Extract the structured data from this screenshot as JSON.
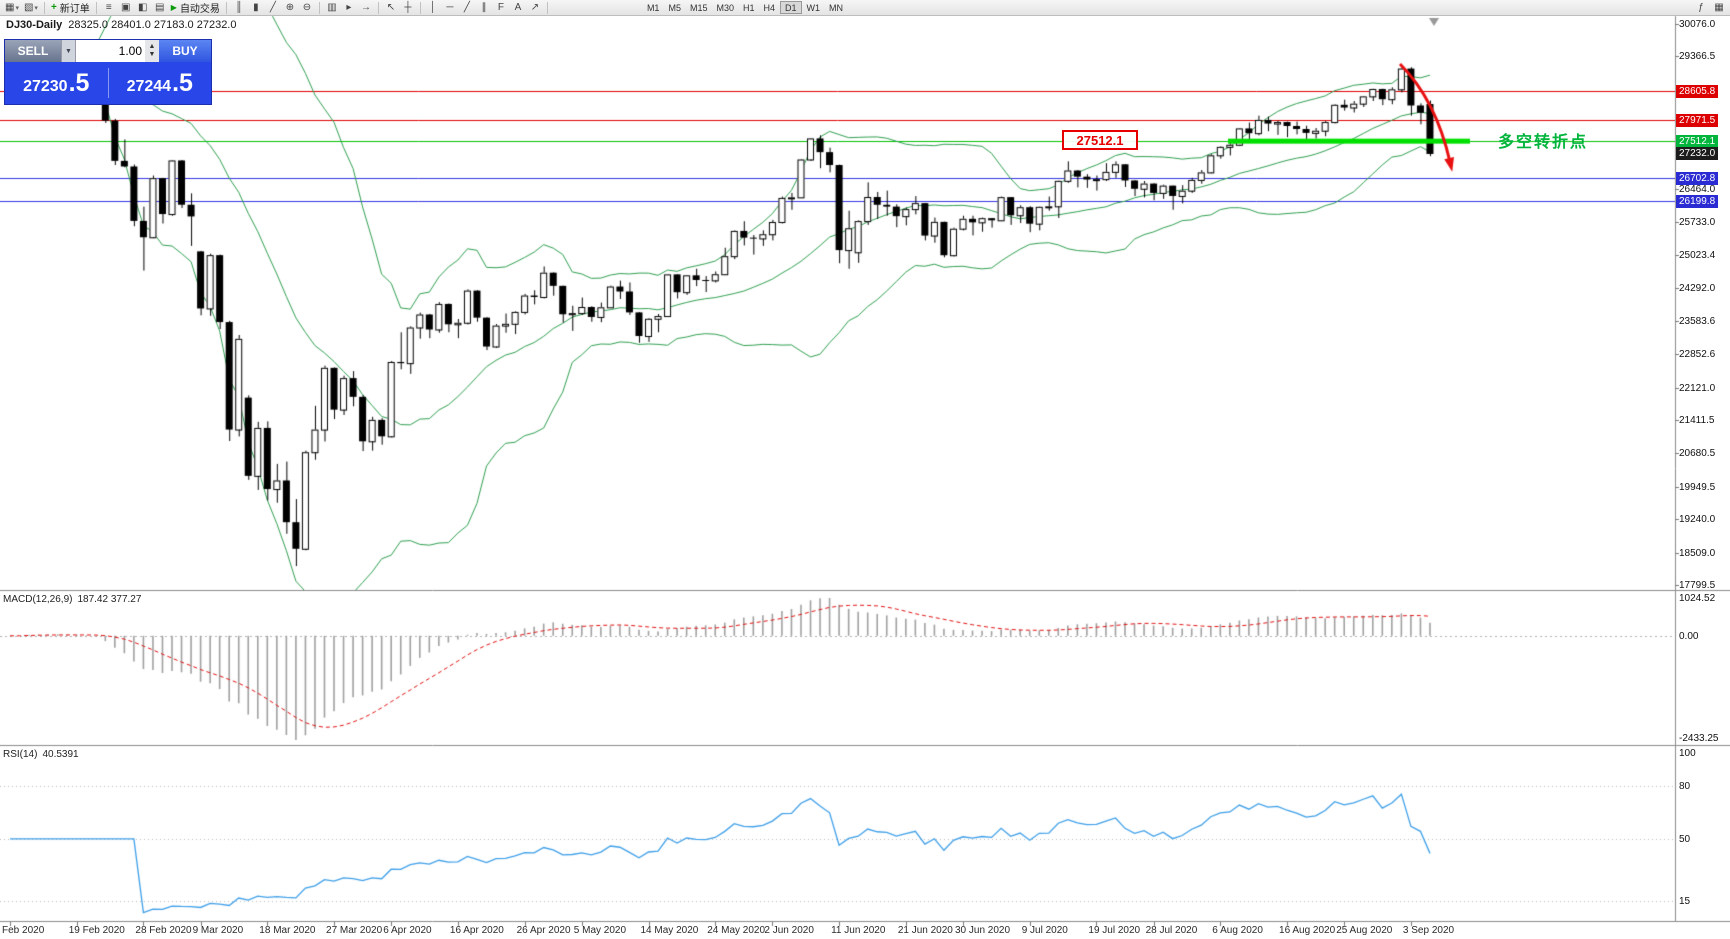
{
  "toolbar": {
    "new_order_label": "新订单",
    "auto_trading_label": "自动交易",
    "timeframes": [
      "M1",
      "M5",
      "M15",
      "M30",
      "H1",
      "H4",
      "D1",
      "W1",
      "MN"
    ],
    "active_timeframe": "D1",
    "window_icons": [
      "market-watch-icon",
      "data-window-icon",
      "navigator-icon",
      "terminal-icon"
    ],
    "chart_type_icons": [
      "bar-chart-icon",
      "candlestick-chart-icon",
      "line-chart-icon"
    ],
    "zoom_icons": [
      "zoom-in-icon",
      "zoom-out-icon"
    ],
    "view_icons": [
      "tile-windows-icon",
      "auto-scroll-icon",
      "chart-shift-icon"
    ],
    "cursor_icons": [
      "cursor-icon",
      "crosshair-icon"
    ],
    "draw_icons": [
      "vertical-line-icon",
      "horizontal-line-icon",
      "trendline-icon",
      "equidistant-channel-icon",
      "fibonacci-icon",
      "text-icon",
      "arrow-icon"
    ],
    "right_icons": [
      "indicators-icon",
      "template-icon"
    ]
  },
  "trade_panel": {
    "sell_label": "SELL",
    "buy_label": "BUY",
    "volume": "1.00",
    "sell_price": "27230.5",
    "buy_price": "27244.5"
  },
  "chart": {
    "symbol_period": "DJ30-Daily",
    "ohlc_text": "28325.0 28401.0 27183.0 27232.0",
    "current_price": "27232.0",
    "price_axis": [
      {
        "t": "30076.0",
        "p": 30076.0
      },
      {
        "t": "29366.5",
        "p": 29366.5
      },
      {
        "t": "26464.0",
        "p": 26464.0
      },
      {
        "t": "25733.0",
        "p": 25733.0
      },
      {
        "t": "25023.4",
        "p": 25023.4
      },
      {
        "t": "24292.0",
        "p": 24292.0
      },
      {
        "t": "23583.6",
        "p": 23583.6
      },
      {
        "t": "22852.6",
        "p": 22852.6
      },
      {
        "t": "22121.0",
        "p": 22121.0
      },
      {
        "t": "21411.5",
        "p": 21411.5
      },
      {
        "t": "20680.5",
        "p": 20680.5
      },
      {
        "t": "19949.5",
        "p": 19949.5
      },
      {
        "t": "19240.0",
        "p": 19240.0
      },
      {
        "t": "18509.0",
        "p": 18509.0
      },
      {
        "t": "17799.5",
        "p": 17799.5
      }
    ],
    "badges": [
      {
        "t": "28605.8",
        "p": 28605.8,
        "bg": "#dd0000"
      },
      {
        "t": "27971.5",
        "p": 27971.5,
        "bg": "#dd0000"
      },
      {
        "t": "27512.1",
        "p": 27512.1,
        "bg": "#00b43c"
      },
      {
        "t": "27232.0",
        "p": 27232.0,
        "bg": "#1c1c1c"
      },
      {
        "t": "26702.8",
        "p": 26702.8,
        "bg": "#2b2bd4"
      },
      {
        "t": "26199.8",
        "p": 26199.8,
        "bg": "#2b2bd4"
      }
    ],
    "levels": [
      {
        "p": 28605.8,
        "c": "#e00000"
      },
      {
        "p": 27971.5,
        "c": "#e00000"
      },
      {
        "p": 27512.1,
        "c": "#00c000"
      },
      {
        "p": 26702.8,
        "c": "#3333e0"
      },
      {
        "p": 26199.8,
        "c": "#3333e0"
      }
    ]
  },
  "annotations": {
    "price_box": "27512.1",
    "turning_point": "多空转折点",
    "support_bar_price": 27512.1
  },
  "macd": {
    "label": "MACD(12,26,9)",
    "values": "187.42 377.27",
    "axis": [
      {
        "t": "1024.52",
        "at": "max"
      },
      {
        "t": "0.00",
        "at": "zero"
      },
      {
        "t": "-2433.25",
        "at": "min"
      }
    ]
  },
  "rsi": {
    "label": "RSI(14)",
    "value": "40.5391",
    "axis": [
      {
        "t": "100",
        "v": 100
      },
      {
        "t": "80",
        "v": 80
      },
      {
        "t": "50",
        "v": 50
      },
      {
        "t": "15",
        "v": 15
      }
    ],
    "levels": [
      80,
      50,
      15
    ]
  },
  "chart_data": {
    "type": "candlestick",
    "symbol": "DJ30",
    "timeframe": "Daily",
    "ylim": [
      17799.5,
      30076.0
    ],
    "overlays": {
      "bollinger": {
        "period": 20,
        "deviation": 2
      },
      "macd": {
        "fast": 12,
        "slow": 26,
        "signal": 9
      },
      "rsi": {
        "period": 14
      }
    },
    "candles": [
      [
        29250,
        29310,
        29190,
        29277
      ],
      [
        29277,
        29320,
        29210,
        29276
      ],
      [
        29276,
        29568,
        29260,
        29551
      ],
      [
        29551,
        29570,
        29380,
        29423
      ],
      [
        29423,
        29470,
        29330,
        29398
      ],
      [
        29398,
        29430,
        29350,
        29400
      ],
      [
        29400,
        29420,
        29150,
        29232
      ],
      [
        29232,
        29360,
        29190,
        29348
      ],
      [
        29348,
        29370,
        29100,
        29220
      ],
      [
        29220,
        29250,
        28890,
        28992
      ],
      [
        28700,
        28750,
        27910,
        27961
      ],
      [
        27961,
        28000,
        26990,
        27081
      ],
      [
        27081,
        27550,
        26940,
        26958
      ],
      [
        26958,
        27000,
        25650,
        25767
      ],
      [
        25767,
        26080,
        24680,
        25409
      ],
      [
        25409,
        26760,
        25390,
        26703
      ],
      [
        26703,
        26710,
        25710,
        25917
      ],
      [
        25917,
        27100,
        25880,
        27090
      ],
      [
        27090,
        27100,
        26050,
        26121
      ],
      [
        26121,
        26370,
        25220,
        25865
      ],
      [
        25100,
        25110,
        23700,
        23851
      ],
      [
        23851,
        25050,
        23690,
        25018
      ],
      [
        25018,
        25030,
        23400,
        23553
      ],
      [
        23553,
        23580,
        20950,
        21201
      ],
      [
        21201,
        23270,
        21050,
        23186
      ],
      [
        21900,
        21950,
        20100,
        20188
      ],
      [
        20188,
        21370,
        19880,
        21237
      ],
      [
        21237,
        21380,
        19650,
        19899
      ],
      [
        19899,
        20450,
        19600,
        20087
      ],
      [
        20087,
        20500,
        18920,
        19174
      ],
      [
        19174,
        19680,
        18213,
        18592
      ],
      [
        18592,
        20740,
        18560,
        20705
      ],
      [
        20705,
        21720,
        20540,
        21200
      ],
      [
        21200,
        22600,
        20940,
        22552
      ],
      [
        22552,
        22560,
        21430,
        21637
      ],
      [
        21637,
        22380,
        21520,
        22327
      ],
      [
        22327,
        22480,
        21710,
        21917
      ],
      [
        21917,
        21960,
        20730,
        20944
      ],
      [
        20944,
        21480,
        20740,
        21413
      ],
      [
        21413,
        21450,
        20870,
        21053
      ],
      [
        21053,
        22700,
        21030,
        22680
      ],
      [
        22680,
        23330,
        22520,
        22654
      ],
      [
        22654,
        23460,
        22420,
        23434
      ],
      [
        23434,
        23760,
        23190,
        23719
      ],
      [
        23719,
        23730,
        23200,
        23391
      ],
      [
        23391,
        23990,
        23320,
        23950
      ],
      [
        23950,
        23960,
        23330,
        23504
      ],
      [
        23504,
        23620,
        23200,
        23538
      ],
      [
        23538,
        24270,
        23500,
        24242
      ],
      [
        24242,
        24250,
        23560,
        23650
      ],
      [
        23650,
        23660,
        22940,
        23018
      ],
      [
        23018,
        23510,
        22990,
        23476
      ],
      [
        23476,
        23740,
        23320,
        23515
      ],
      [
        23515,
        23790,
        23290,
        23775
      ],
      [
        23775,
        24170,
        23720,
        24134
      ],
      [
        24134,
        24250,
        23940,
        24102
      ],
      [
        24102,
        24770,
        24070,
        24634
      ],
      [
        24634,
        24640,
        24130,
        24346
      ],
      [
        24346,
        24350,
        23540,
        23724
      ],
      [
        23724,
        23910,
        23360,
        23749
      ],
      [
        23749,
        24090,
        23710,
        23883
      ],
      [
        23883,
        23900,
        23560,
        23665
      ],
      [
        23665,
        23980,
        23550,
        23876
      ],
      [
        23876,
        24350,
        23870,
        24331
      ],
      [
        24331,
        24460,
        24060,
        24222
      ],
      [
        24222,
        24420,
        23710,
        23765
      ],
      [
        23765,
        23770,
        23100,
        23248
      ],
      [
        23248,
        23640,
        23120,
        23625
      ],
      [
        23625,
        23730,
        23330,
        23685
      ],
      [
        23685,
        24600,
        23680,
        24597
      ],
      [
        24597,
        24600,
        24070,
        24207
      ],
      [
        24207,
        24580,
        24150,
        24576
      ],
      [
        24576,
        24720,
        24340,
        24474
      ],
      [
        24474,
        24560,
        24210,
        24465
      ],
      [
        24465,
        24660,
        24420,
        24600
      ],
      [
        24600,
        25180,
        24590,
        24995
      ],
      [
        24995,
        25560,
        24930,
        25548
      ],
      [
        25548,
        25760,
        25230,
        25401
      ],
      [
        25401,
        25460,
        25030,
        25383
      ],
      [
        25383,
        25560,
        25220,
        25475
      ],
      [
        25475,
        25790,
        25340,
        25743
      ],
      [
        25743,
        26300,
        25710,
        26270
      ],
      [
        26270,
        26380,
        26010,
        26282
      ],
      [
        26282,
        27120,
        26280,
        27111
      ],
      [
        27111,
        27580,
        27080,
        27572
      ],
      [
        27572,
        27640,
        26920,
        27272
      ],
      [
        27272,
        27370,
        26830,
        26990
      ],
      [
        26990,
        27000,
        24840,
        25128
      ],
      [
        25128,
        25990,
        24720,
        25606
      ],
      [
        25080,
        25780,
        24850,
        25763
      ],
      [
        25763,
        26610,
        25680,
        26290
      ],
      [
        26290,
        26400,
        25810,
        26120
      ],
      [
        26120,
        26430,
        25880,
        26080
      ],
      [
        26080,
        26130,
        25630,
        25871
      ],
      [
        25871,
        26060,
        25670,
        26025
      ],
      [
        26025,
        26310,
        25910,
        26156
      ],
      [
        26156,
        26160,
        25340,
        25446
      ],
      [
        25446,
        25840,
        25290,
        25746
      ],
      [
        25746,
        25750,
        24970,
        25016
      ],
      [
        25016,
        25620,
        24990,
        25596
      ],
      [
        25596,
        25880,
        25560,
        25813
      ],
      [
        25813,
        25880,
        25450,
        25735
      ],
      [
        25735,
        25840,
        25530,
        25827
      ],
      [
        25827,
        25830,
        25620,
        25780
      ],
      [
        25780,
        26300,
        25770,
        26287
      ],
      [
        26287,
        26290,
        25680,
        25890
      ],
      [
        25890,
        26110,
        25720,
        26067
      ],
      [
        26067,
        26090,
        25520,
        25706
      ],
      [
        25706,
        26080,
        25560,
        26075
      ],
      [
        26075,
        26300,
        25990,
        26086
      ],
      [
        26086,
        26650,
        25830,
        26643
      ],
      [
        26643,
        27070,
        26600,
        26870
      ],
      [
        26870,
        26880,
        26500,
        26735
      ],
      [
        26735,
        26790,
        26490,
        26672
      ],
      [
        26672,
        26760,
        26430,
        26681
      ],
      [
        26681,
        27030,
        26640,
        26840
      ],
      [
        26840,
        27070,
        26710,
        27006
      ],
      [
        27006,
        27010,
        26510,
        26652
      ],
      [
        26652,
        26660,
        26310,
        26470
      ],
      [
        26470,
        26640,
        26280,
        26584
      ],
      [
        26584,
        26590,
        26220,
        26379
      ],
      [
        26379,
        26560,
        26250,
        26539
      ],
      [
        26539,
        26540,
        26010,
        26313
      ],
      [
        26313,
        26550,
        26150,
        26428
      ],
      [
        26428,
        26710,
        26380,
        26664
      ],
      [
        26664,
        26880,
        26580,
        26828
      ],
      [
        26828,
        27230,
        26810,
        27202
      ],
      [
        27202,
        27400,
        27130,
        27387
      ],
      [
        27387,
        27470,
        27200,
        27433
      ],
      [
        27433,
        27800,
        27410,
        27791
      ],
      [
        27791,
        27920,
        27550,
        27687
      ],
      [
        27687,
        28070,
        27640,
        27977
      ],
      [
        27977,
        28050,
        27730,
        27897
      ],
      [
        27897,
        27960,
        27650,
        27931
      ],
      [
        27931,
        27940,
        27600,
        27844
      ],
      [
        27844,
        27940,
        27660,
        27778
      ],
      [
        27778,
        27850,
        27540,
        27693
      ],
      [
        27693,
        27800,
        27570,
        27740
      ],
      [
        27740,
        27950,
        27620,
        27930
      ],
      [
        27930,
        28320,
        27900,
        28308
      ],
      [
        28308,
        28420,
        28180,
        28248
      ],
      [
        28248,
        28390,
        28140,
        28332
      ],
      [
        28332,
        28500,
        28260,
        28492
      ],
      [
        28492,
        28660,
        28390,
        28654
      ],
      [
        28654,
        28660,
        28300,
        28430
      ],
      [
        28430,
        28690,
        28320,
        28646
      ],
      [
        28646,
        29120,
        28580,
        29101
      ],
      [
        29101,
        29130,
        28070,
        28293
      ],
      [
        28293,
        28340,
        27880,
        28133
      ],
      [
        28325,
        28401,
        27183,
        27232
      ]
    ],
    "time_axis": [
      {
        "label": "Feb 2020",
        "i": 0
      },
      {
        "label": "19 Feb 2020",
        "i": 7
      },
      {
        "label": "28 Feb 2020",
        "i": 14
      },
      {
        "label": "9 Mar 2020",
        "i": 20
      },
      {
        "label": "18 Mar 2020",
        "i": 27
      },
      {
        "label": "27 Mar 2020",
        "i": 34
      },
      {
        "label": "6 Apr 2020",
        "i": 40
      },
      {
        "label": "16 Apr 2020",
        "i": 47
      },
      {
        "label": "26 Apr 2020",
        "i": 54
      },
      {
        "label": "5 May 2020",
        "i": 60
      },
      {
        "label": "14 May 2020",
        "i": 67
      },
      {
        "label": "24 May 2020",
        "i": 74
      },
      {
        "label": "2 Jun 2020",
        "i": 80
      },
      {
        "label": "11 Jun 2020",
        "i": 87
      },
      {
        "label": "21 Jun 2020",
        "i": 94
      },
      {
        "label": "30 Jun 2020",
        "i": 100
      },
      {
        "label": "9 Jul 2020",
        "i": 107
      },
      {
        "label": "19 Jul 2020",
        "i": 114
      },
      {
        "label": "28 Jul 2020",
        "i": 120
      },
      {
        "label": "6 Aug 2020",
        "i": 127
      },
      {
        "label": "16 Aug 2020",
        "i": 134
      },
      {
        "label": "25 Aug 2020",
        "i": 140
      },
      {
        "label": "3 Sep 2020",
        "i": 147
      }
    ]
  }
}
